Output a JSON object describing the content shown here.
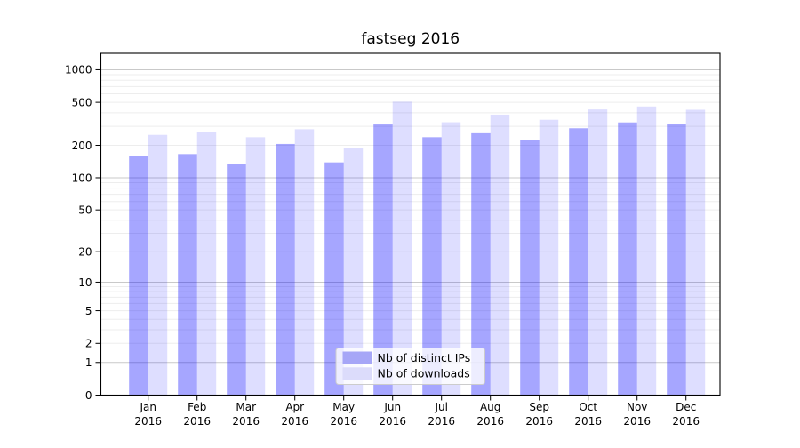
{
  "chart_data": {
    "type": "bar",
    "title": "fastseg 2016",
    "x_categories": [
      "Jan",
      "Feb",
      "Mar",
      "Apr",
      "May",
      "Jun",
      "Jul",
      "Aug",
      "Sep",
      "Oct",
      "Nov",
      "Dec"
    ],
    "x_year_label": "2016",
    "series": [
      {
        "name": "Nb of distinct IPs",
        "color": "rgba(0,0,255,0.35)",
        "swatch_color": "#a6a6f7",
        "values": [
          158,
          166,
          135,
          206,
          139,
          312,
          238,
          259,
          225,
          288,
          326,
          313
        ]
      },
      {
        "name": "Nb of downloads",
        "color": "rgba(0,0,255,0.13)",
        "swatch_color": "#dcdcfb",
        "values": [
          250,
          268,
          238,
          282,
          189,
          507,
          327,
          385,
          345,
          430,
          458,
          427
        ]
      }
    ],
    "y_ticks": [
      0,
      1,
      2,
      5,
      10,
      20,
      50,
      100,
      200,
      500,
      1000
    ],
    "y_scale": "log1p",
    "ylim": [
      0,
      1400
    ],
    "grid": true,
    "legend_position": "lower center",
    "colors": {
      "major_grid": "#c9c9c9",
      "minor_grid": "#ededed",
      "spine": "#000000",
      "legend_border": "#cccccc",
      "legend_bg": "rgba(255,255,255,0.8)"
    }
  }
}
